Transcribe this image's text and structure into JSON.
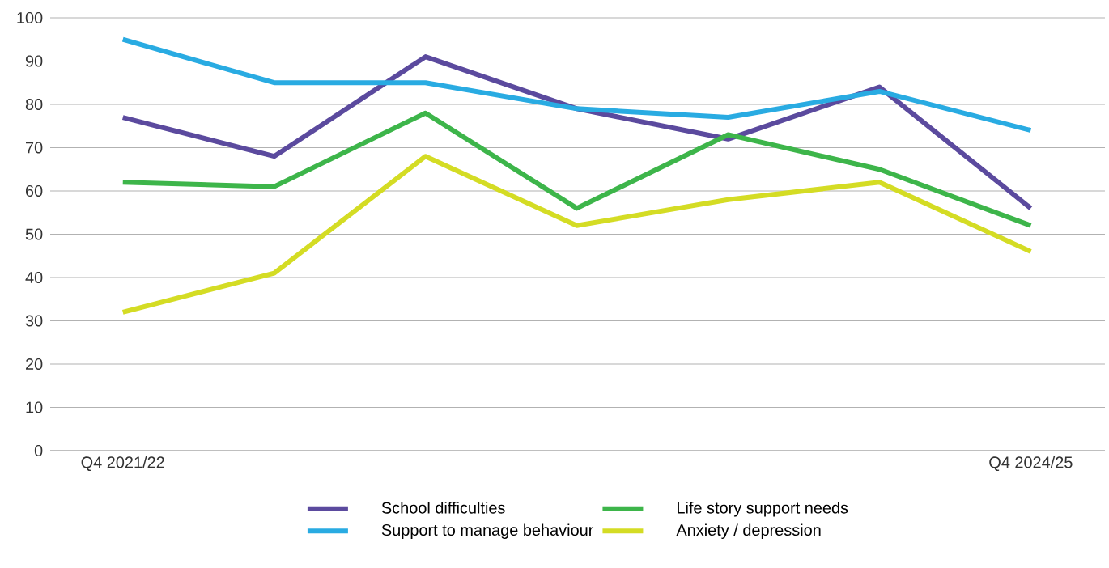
{
  "chart_data": {
    "type": "line",
    "categories": [
      "Q4 2021/22",
      null,
      null,
      null,
      null,
      null,
      "Q4 2024/25"
    ],
    "series": [
      {
        "name": "School difficulties",
        "color": "#5b4a9e",
        "values": [
          77,
          68,
          91,
          79,
          72,
          84,
          56
        ]
      },
      {
        "name": "Life story support needs",
        "color": "#3db54a",
        "values": [
          62,
          61,
          78,
          56,
          73,
          65,
          52
        ]
      },
      {
        "name": "Support to manage behaviour",
        "color": "#29abe2",
        "values": [
          95,
          85,
          85,
          79,
          77,
          83,
          74
        ]
      },
      {
        "name": "Anxiety / depression",
        "color": "#d4dc24",
        "values": [
          32,
          41,
          68,
          52,
          58,
          62,
          46
        ]
      }
    ],
    "ylim": [
      0,
      100
    ],
    "yticks": [
      0,
      10,
      20,
      30,
      40,
      50,
      60,
      70,
      80,
      90,
      100
    ],
    "grid": "y",
    "legend": "bottom",
    "marker": "none",
    "line_style": "solid"
  }
}
